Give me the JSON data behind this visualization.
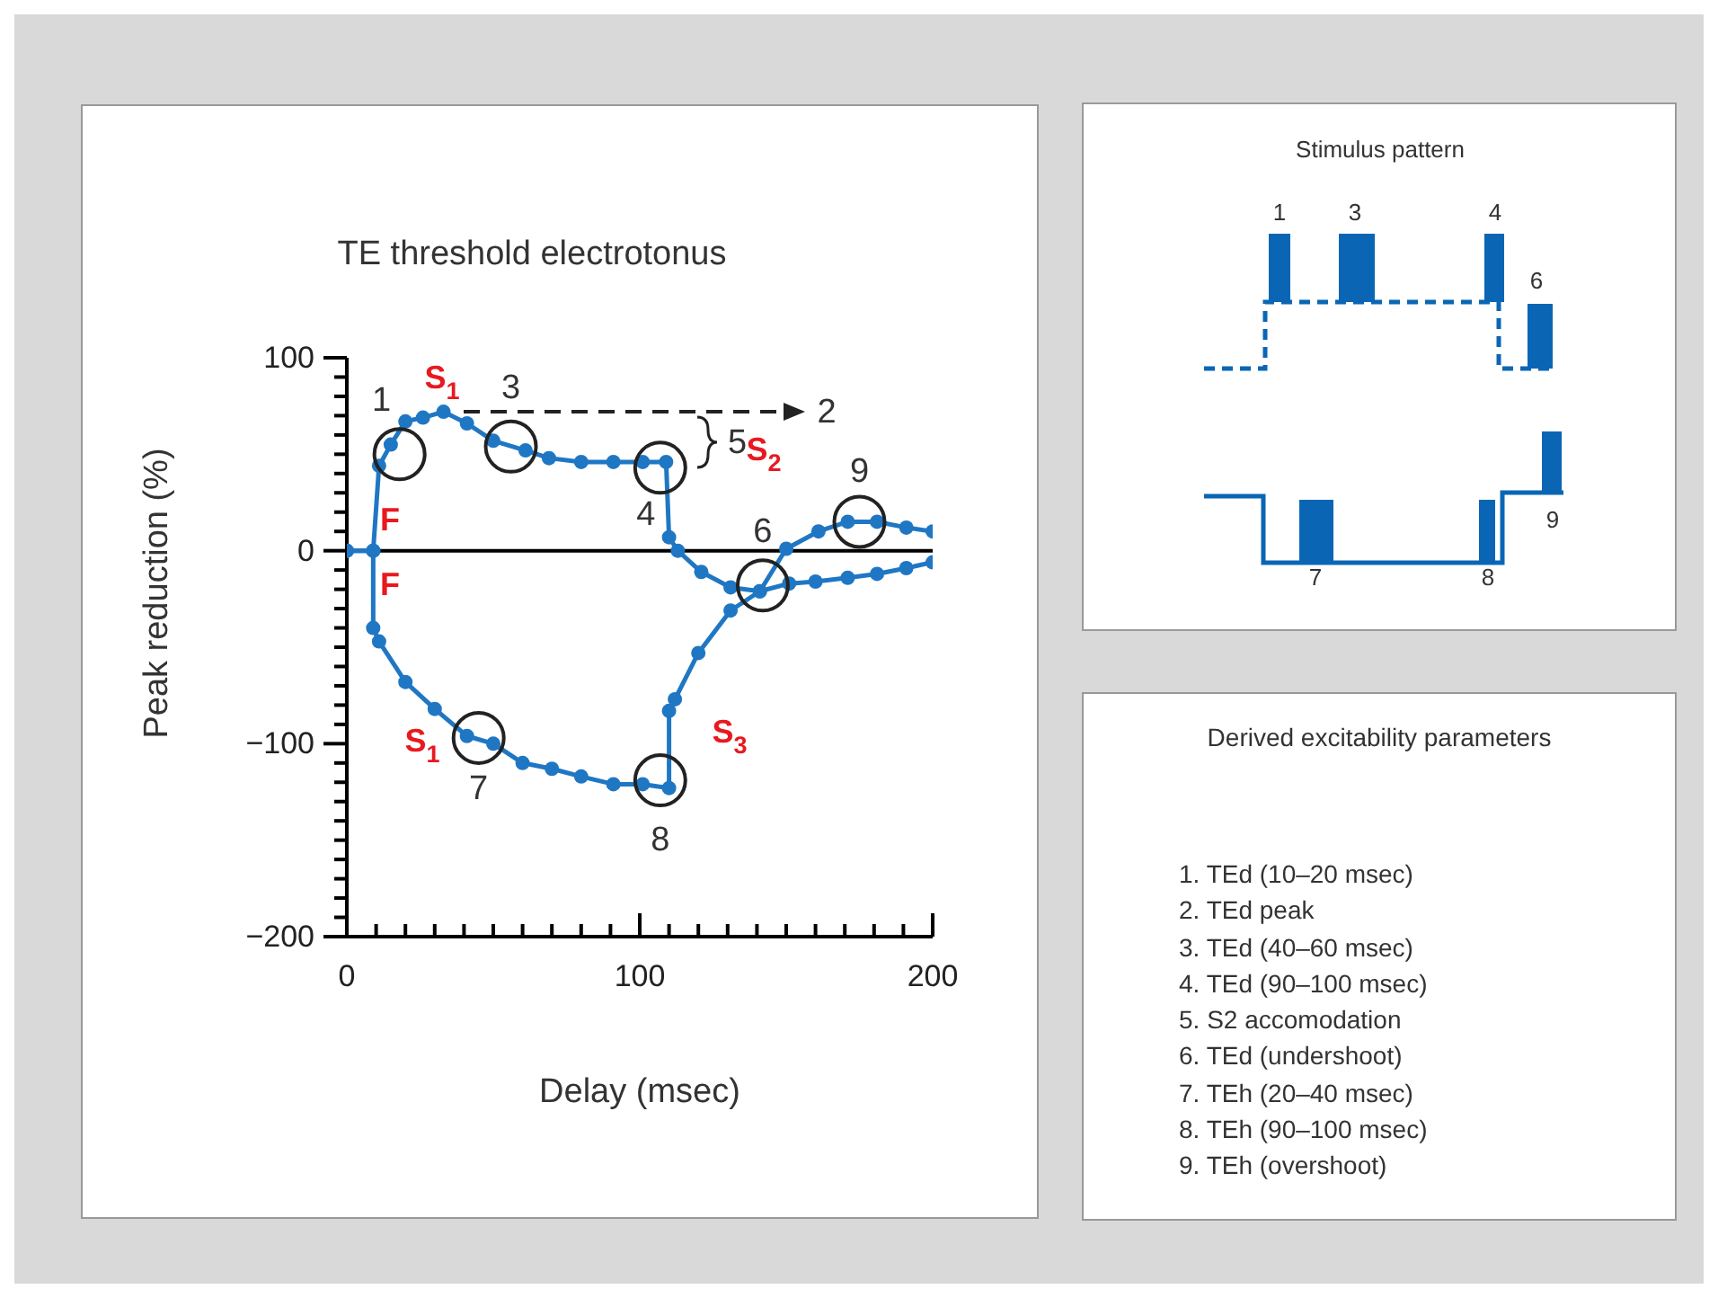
{
  "chart_data": [
    {
      "type": "line",
      "title": "TE threshold electrotonus",
      "xlabel": "Delay (msec)",
      "ylabel": "Peak reduction (%)",
      "series": [
        {
          "color": "#1f77c4",
          "x": [
            0,
            9,
            11,
            15,
            20,
            26,
            33,
            41,
            50,
            61,
            69,
            80,
            91,
            101,
            109,
            110,
            113,
            121,
            131,
            141,
            150,
            161,
            171,
            181,
            191,
            200
          ],
          "values": [
            0,
            0,
            44,
            55,
            67,
            69,
            72,
            66,
            57,
            52,
            48,
            46,
            46,
            46,
            46,
            7,
            0,
            -11,
            -19,
            -21,
            1,
            10,
            15,
            15,
            12,
            10
          ]
        },
        {
          "color": "#1f77c4",
          "x": [
            0,
            9,
            9,
            11,
            20,
            30,
            41,
            50,
            60,
            70,
            80,
            91,
            101,
            110,
            110,
            112,
            120,
            131,
            141,
            151,
            160,
            171,
            181,
            191,
            200
          ],
          "values": [
            0,
            0,
            -40,
            -47,
            -68,
            -82,
            -96,
            -100,
            -110,
            -113,
            -117,
            -121,
            -121,
            -123,
            -83,
            -77,
            -53,
            -31,
            -21,
            -17,
            -16,
            -14,
            -12,
            -9,
            -6
          ]
        }
      ],
      "xlim": [
        0,
        200
      ],
      "xticks": [
        0,
        {
          "value": 10,
          "label": null
        },
        {
          "value": 20,
          "label": null
        },
        {
          "value": 30,
          "label": null
        },
        {
          "value": 40,
          "label": null
        },
        {
          "value": 50,
          "label": null
        },
        {
          "value": 60,
          "label": null
        },
        {
          "value": 70,
          "label": null
        },
        {
          "value": 80,
          "label": null
        },
        {
          "value": 90,
          "label": null
        },
        100,
        {
          "value": 110,
          "label": null
        },
        {
          "value": 120,
          "label": null
        },
        {
          "value": 130,
          "label": null
        },
        {
          "value": 140,
          "label": null
        },
        {
          "value": 150,
          "label": null
        },
        {
          "value": 160,
          "label": null
        },
        {
          "value": 170,
          "label": null
        },
        {
          "value": 180,
          "label": null
        },
        {
          "value": 190,
          "label": null
        },
        200
      ],
      "ylim": [
        -200,
        100
      ],
      "yticks": [
        {
          "value": -200,
          "label": "−200"
        },
        {
          "value": -190,
          "label": null
        },
        {
          "value": -180,
          "label": null
        },
        {
          "value": -170,
          "label": null
        },
        {
          "value": -160,
          "label": null
        },
        {
          "value": -150,
          "label": null
        },
        {
          "value": -140,
          "label": null
        },
        {
          "value": -130,
          "label": null
        },
        {
          "value": -120,
          "label": null
        },
        {
          "value": -110,
          "label": null
        },
        {
          "value": -100,
          "label": "−100"
        },
        {
          "value": -90,
          "label": null
        },
        {
          "value": -80,
          "label": null
        },
        {
          "value": -70,
          "label": null
        },
        {
          "value": -60,
          "label": null
        },
        {
          "value": -50,
          "label": null
        },
        {
          "value": -40,
          "label": null
        },
        {
          "value": -30,
          "label": null
        },
        {
          "value": -20,
          "label": null
        },
        {
          "value": -10,
          "label": null
        },
        0,
        {
          "value": 10,
          "label": null
        },
        {
          "value": 20,
          "label": null
        },
        {
          "value": 30,
          "label": null
        },
        {
          "value": 40,
          "label": null
        },
        {
          "value": 50,
          "label": null
        },
        {
          "value": 60,
          "label": null
        },
        {
          "value": 70,
          "label": null
        },
        {
          "value": 80,
          "label": null
        },
        {
          "value": 90,
          "label": null
        },
        100
      ],
      "ref_lines": [
        {
          "axis": "y",
          "value": 0,
          "color": "#000000"
        }
      ],
      "marker": "circle",
      "annotations": [
        {
          "text": "1",
          "x": 18,
          "y": 50
        },
        "S$_{1}$",
        {
          "text": "3",
          "x": 56,
          "y": 54
        },
        "2",
        "5",
        "S$_{2}$",
        {
          "text": "4",
          "x": 107,
          "y": 43
        },
        {
          "text": "6",
          "x": 142,
          "y": -18
        },
        {
          "text": "9",
          "x": 175,
          "y": 15
        },
        "F",
        "F",
        "S$_{1}$",
        {
          "text": "7",
          "x": 45,
          "y": -97
        },
        {
          "text": "8",
          "x": 107,
          "y": -119
        },
        "S$_{3}$"
      ]
    },
    {
      "type": "other",
      "title": "Stimulus pattern",
      "annotations": [
        "1",
        "3",
        "4",
        "6",
        "7",
        "8",
        "9"
      ]
    },
    {
      "type": "other",
      "title": "Derived excitability parameters",
      "annotations": [
        "1. TEd (10–20 msec)",
        "2. TEd peak",
        "3. TEd (40–60 msec)",
        "4. TEd (90–100 msec)",
        "5. S2 accomodation",
        "6. TEd (undershoot)",
        "7. TEh (20–40 msec)",
        "8. TEh (90–100 msec)",
        "9. TEh (overshoot)"
      ]
    }
  ]
}
